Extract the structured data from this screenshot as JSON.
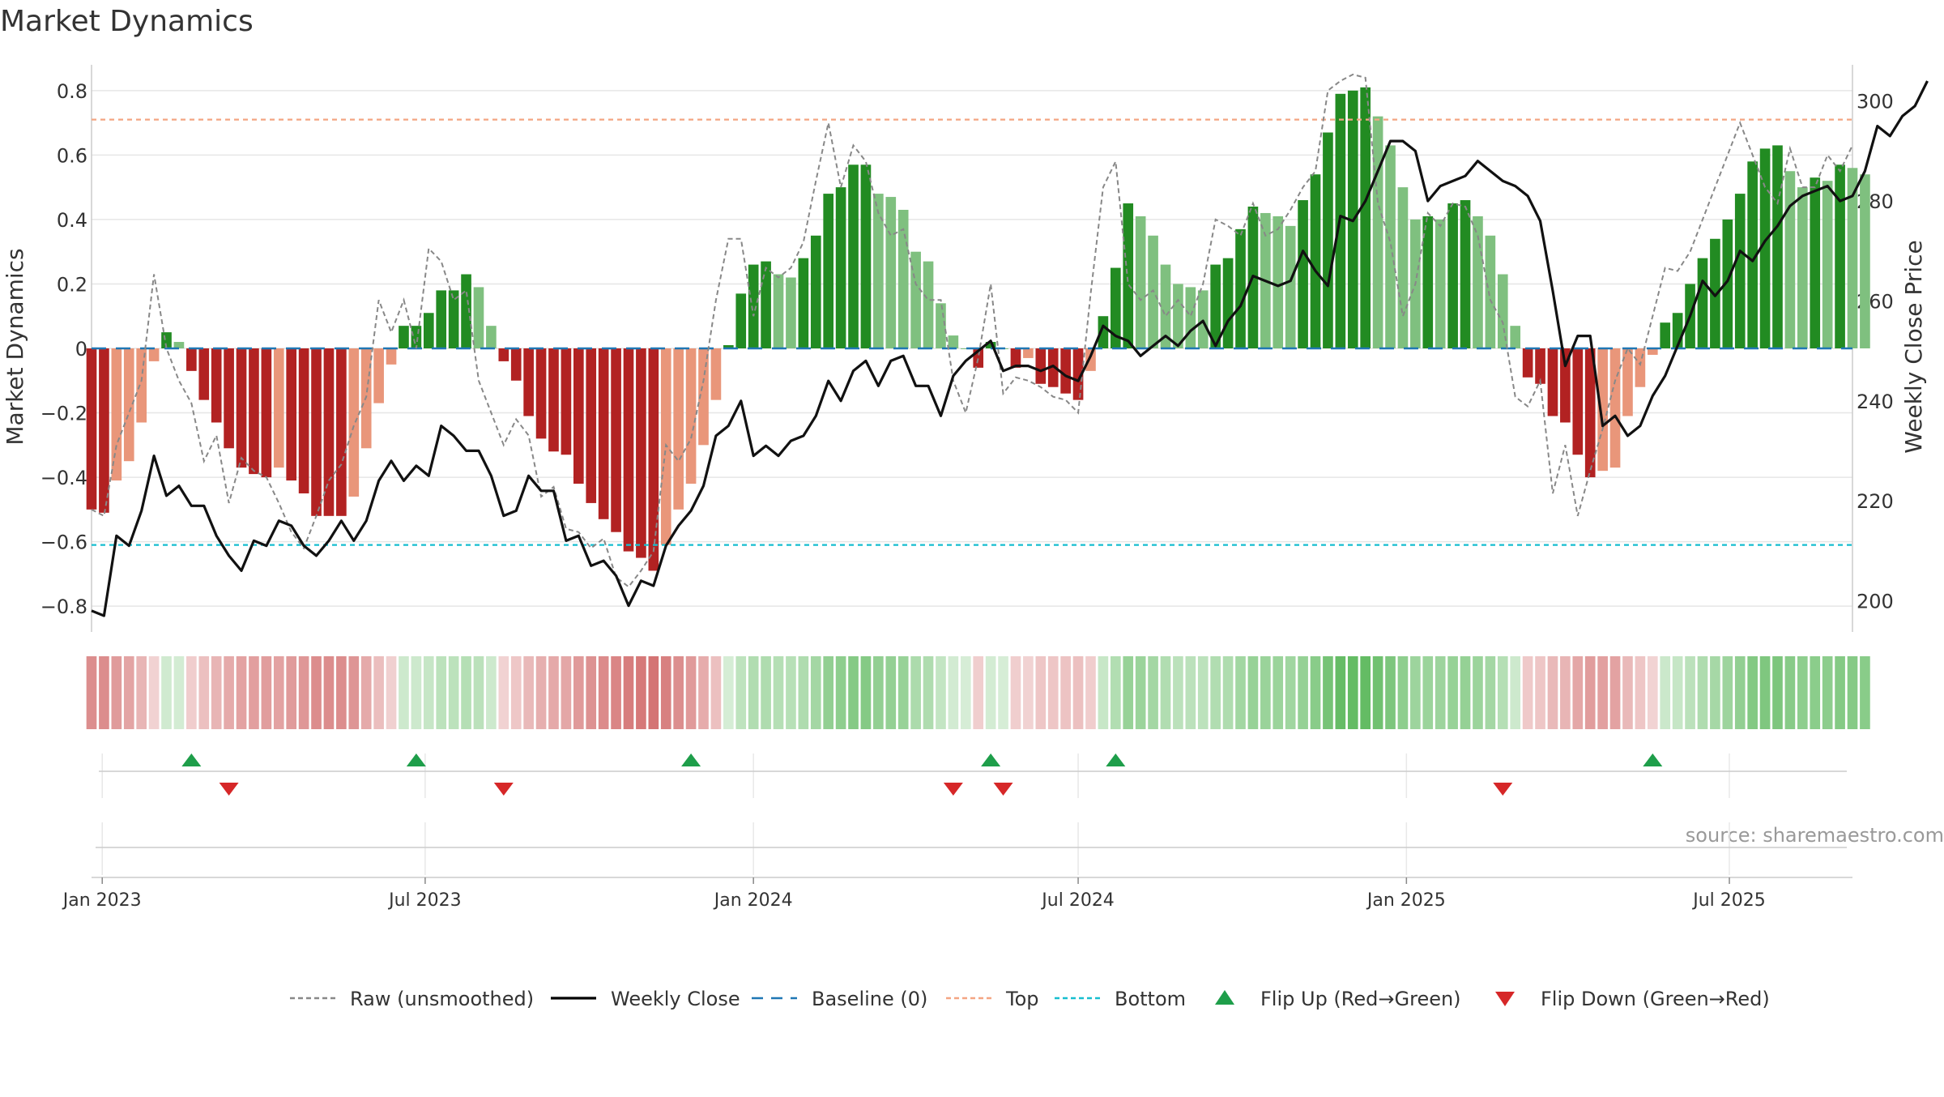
{
  "chart_data": {
    "type": "bar",
    "title": "Market Dynamics",
    "ylabel": "Market Dynamics",
    "y2label": "Weekly Close Price",
    "ylim": [
      -0.88,
      0.88
    ],
    "y2lim": [
      193.75,
      307.25
    ],
    "xlim": [
      "2022-12-26",
      "2025-09-08"
    ],
    "yticks": [
      -0.8,
      -0.6,
      -0.4,
      -0.2,
      0,
      0.2,
      0.4,
      0.6,
      0.8
    ],
    "y2ticks": [
      200,
      220,
      240,
      260,
      280,
      300
    ],
    "xticks": [
      {
        "date": "2023-01-01",
        "label": "Jan 2023"
      },
      {
        "date": "2023-07-01",
        "label": "Jul 2023"
      },
      {
        "date": "2024-01-01",
        "label": "Jan 2024"
      },
      {
        "date": "2024-07-01",
        "label": "Jul 2024"
      },
      {
        "date": "2025-01-01",
        "label": "Jan 2025"
      },
      {
        "date": "2025-07-01",
        "label": "Jul 2025"
      }
    ],
    "start_date": "2022-12-26",
    "week_interval_days": 7,
    "top_threshold": 0.71,
    "bottom_threshold": -0.61,
    "baseline": 0,
    "grid": true,
    "smoothed": [
      -0.5,
      -0.51,
      -0.41,
      -0.35,
      -0.23,
      -0.04,
      0.05,
      0.02,
      -0.07,
      -0.16,
      -0.23,
      -0.31,
      -0.37,
      -0.39,
      -0.4,
      -0.37,
      -0.41,
      -0.45,
      -0.52,
      -0.52,
      -0.52,
      -0.46,
      -0.31,
      -0.17,
      -0.05,
      0.07,
      0.07,
      0.11,
      0.18,
      0.18,
      0.23,
      0.19,
      0.07,
      -0.04,
      -0.1,
      -0.21,
      -0.28,
      -0.32,
      -0.33,
      -0.42,
      -0.48,
      -0.53,
      -0.57,
      -0.63,
      -0.65,
      -0.69,
      -0.61,
      -0.5,
      -0.42,
      -0.3,
      -0.16,
      0.01,
      0.17,
      0.26,
      0.27,
      0.23,
      0.22,
      0.28,
      0.35,
      0.48,
      0.5,
      0.57,
      0.57,
      0.48,
      0.47,
      0.43,
      0.3,
      0.27,
      0.14,
      0.04,
      0.0,
      -0.06,
      0.02,
      0.0,
      -0.06,
      -0.03,
      -0.11,
      -0.12,
      -0.14,
      -0.16,
      -0.07,
      0.1,
      0.25,
      0.45,
      0.41,
      0.35,
      0.26,
      0.2,
      0.19,
      0.18,
      0.26,
      0.28,
      0.37,
      0.44,
      0.42,
      0.41,
      0.38,
      0.46,
      0.54,
      0.67,
      0.79,
      0.8,
      0.81,
      0.72,
      0.63,
      0.5,
      0.4,
      0.41,
      0.4,
      0.45,
      0.46,
      0.41,
      0.35,
      0.23,
      0.07,
      -0.09,
      -0.11,
      -0.21,
      -0.23,
      -0.33,
      -0.4,
      -0.38,
      -0.37,
      -0.21,
      -0.12,
      -0.02,
      0.08,
      0.11,
      0.2,
      0.28,
      0.34,
      0.4,
      0.48,
      0.58,
      0.62,
      0.63,
      0.55,
      0.5,
      0.53,
      0.52,
      0.57,
      0.56,
      0.54
    ],
    "raw": [
      -0.5,
      -0.52,
      -0.3,
      -0.2,
      -0.1,
      0.23,
      0.0,
      -0.1,
      -0.17,
      -0.35,
      -0.27,
      -0.48,
      -0.34,
      -0.38,
      -0.4,
      -0.48,
      -0.57,
      -0.62,
      -0.52,
      -0.41,
      -0.36,
      -0.24,
      -0.15,
      0.15,
      0.05,
      0.15,
      0.0,
      0.31,
      0.27,
      0.15,
      0.18,
      -0.1,
      -0.2,
      -0.3,
      -0.22,
      -0.27,
      -0.46,
      -0.43,
      -0.56,
      -0.57,
      -0.62,
      -0.59,
      -0.71,
      -0.74,
      -0.69,
      -0.63,
      -0.3,
      -0.35,
      -0.28,
      -0.1,
      0.15,
      0.34,
      0.34,
      0.1,
      0.25,
      0.22,
      0.25,
      0.33,
      0.52,
      0.7,
      0.5,
      0.63,
      0.58,
      0.42,
      0.35,
      0.37,
      0.2,
      0.15,
      0.15,
      -0.1,
      -0.2,
      -0.03,
      0.2,
      -0.14,
      -0.09,
      -0.1,
      -0.12,
      -0.15,
      -0.16,
      -0.2,
      0.17,
      0.5,
      0.58,
      0.2,
      0.15,
      0.18,
      0.1,
      0.15,
      0.1,
      0.2,
      0.4,
      0.38,
      0.35,
      0.45,
      0.35,
      0.37,
      0.43,
      0.5,
      0.55,
      0.8,
      0.83,
      0.85,
      0.84,
      0.45,
      0.33,
      0.1,
      0.2,
      0.42,
      0.38,
      0.45,
      0.44,
      0.35,
      0.15,
      0.08,
      -0.15,
      -0.18,
      -0.1,
      -0.45,
      -0.3,
      -0.52,
      -0.38,
      -0.25,
      -0.1,
      0.0,
      -0.05,
      0.1,
      0.25,
      0.24,
      0.3,
      0.4,
      0.5,
      0.6,
      0.7,
      0.6,
      0.5,
      0.45,
      0.62,
      0.5,
      0.5,
      0.6,
      0.55,
      0.63
    ],
    "close": [
      198,
      197,
      213,
      211,
      218,
      229,
      221,
      223,
      219,
      219,
      213,
      209,
      206,
      212,
      211,
      216,
      215,
      211,
      209,
      212,
      216,
      212,
      216,
      224,
      228,
      224,
      227,
      225,
      235,
      233,
      230,
      230,
      225,
      217,
      218,
      225,
      222,
      222,
      212,
      213,
      207,
      208,
      205,
      199,
      204,
      203,
      211,
      215,
      218,
      223,
      233,
      235,
      240,
      229,
      231,
      229,
      232,
      233,
      237,
      244,
      240,
      246,
      248,
      243,
      248,
      249,
      243,
      243,
      237,
      245,
      248,
      250,
      252,
      246,
      247,
      247,
      246,
      247,
      245,
      244,
      249,
      255,
      253,
      252,
      249,
      251,
      253,
      251,
      254,
      256,
      251,
      256,
      259,
      265,
      264,
      263,
      264,
      270,
      266,
      263,
      277,
      276,
      280,
      286,
      292,
      292,
      290,
      280,
      283,
      284,
      285,
      288,
      286,
      284,
      283,
      281,
      276,
      262,
      247,
      253,
      253,
      235,
      237,
      233,
      235,
      241,
      245,
      251,
      257,
      264,
      261,
      264,
      270,
      268,
      272,
      275,
      279,
      281,
      282,
      283,
      280,
      281,
      286,
      295,
      293,
      297,
      299,
      304
    ],
    "flip_up": [
      "2023-02-20",
      "2023-06-26",
      "2023-11-27",
      "2024-05-13",
      "2024-07-22",
      "2025-05-19"
    ],
    "flip_down": [
      "2023-03-13",
      "2023-08-14",
      "2024-04-22",
      "2024-05-20",
      "2025-02-24"
    ],
    "legend": [
      {
        "type": "dotted-line",
        "label": "Raw (unsmoothed)",
        "color": "#888888"
      },
      {
        "type": "solid-line",
        "label": "Weekly Close",
        "color": "#000000"
      },
      {
        "type": "dashed-line",
        "label": "Baseline (0)",
        "color": "#1f77b4"
      },
      {
        "type": "dotted-line",
        "label": "Top",
        "color": "#f4a582"
      },
      {
        "type": "dotted-line",
        "label": "Bottom",
        "color": "#17becf"
      },
      {
        "type": "up-triangle",
        "label": "Flip Up (Red→Green)",
        "color": "#1e9e4a"
      },
      {
        "type": "down-triangle",
        "label": "Flip Down (Green→Red)",
        "color": "#d62728"
      }
    ],
    "legend_position": "bottom-center"
  },
  "source": "source: sharemaestro.com",
  "colors": {
    "bar_dark_green": "#228b22",
    "bar_light_green": "#7fc07f",
    "bar_dark_red": "#b22222",
    "bar_light_red": "#e9967a",
    "heat_green": "#5cb85c",
    "heat_red": "#cd5c5c",
    "raw_line": "#888888",
    "close_line": "#111111",
    "baseline": "#1f77b4",
    "top": "#f4a582",
    "bottom": "#17becf",
    "flip_up": "#1e9e4a",
    "flip_down": "#d62728",
    "grid": "#e6e6e6"
  }
}
